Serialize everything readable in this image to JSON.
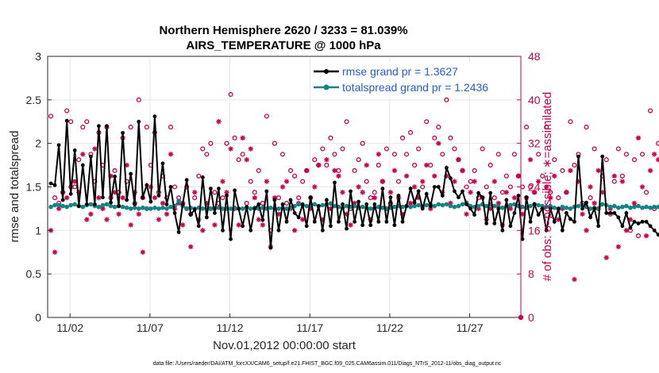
{
  "chart_data": {
    "type": "line",
    "title_line1": "Northern Hemisphere 2620 / 3233 = 81.039%",
    "title_line2": "AIRS_TEMPERATURE @ 1000 hPa",
    "xlabel": "Nov.01,2012 00:00:00 start",
    "ylabel_left": "rmse and totalspread",
    "ylabel_right": "# of obs: o=possible; ∗=assimilated",
    "footer": "data file: /Users/raeder/DAI/ATM_forcXX/CAM6_setup/f.e21.FHIST_BGC.f09_025.CAM6assim.011/Diags_NTrS_2012-11/obs_diag_output.nc",
    "xlim": [
      0.6,
      30.2
    ],
    "ylim_left": [
      0,
      3
    ],
    "ylim_right": [
      0,
      48
    ],
    "x_tick_values": [
      2,
      7,
      12,
      17,
      22,
      27
    ],
    "x_tick_labels": [
      "11/02",
      "11/07",
      "11/12",
      "11/17",
      "11/22",
      "11/27"
    ],
    "y_left_ticks": [
      0,
      0.5,
      1,
      1.5,
      2,
      2.5,
      3
    ],
    "y_left_tick_labels": [
      "0",
      "0.5",
      "1",
      "1.5",
      "2",
      "2.5",
      "3"
    ],
    "y_right_ticks": [
      0,
      8,
      16,
      24,
      32,
      40,
      48
    ],
    "y_right_tick_labels": [
      "0",
      "8",
      "16",
      "24",
      "32",
      "40",
      "48"
    ],
    "x_start": 0.8,
    "x_step": 0.25,
    "series": [
      {
        "name": "rmse",
        "legend": "rmse grand pr = 1.3627",
        "color": "#000000",
        "values": [
          1.54,
          1.52,
          1.98,
          1.35,
          2.26,
          1.42,
          1.92,
          1.28,
          1.75,
          1.3,
          1.85,
          1.3,
          2.2,
          1.38,
          2.2,
          1.32,
          1.62,
          1.28,
          2.12,
          1.35,
          1.65,
          1.3,
          2.25,
          1.38,
          1.52,
          1.33,
          2.31,
          1.4,
          1.77,
          1.3,
          1.5,
          1.2,
          0.98,
          1.3,
          1.58,
          1.18,
          1.24,
          1.05,
          1.61,
          1.15,
          1.48,
          1.2,
          1.48,
          1.0,
          1.4,
          0.9,
          1.46,
          1.25,
          1.05,
          1.27,
          1.0,
          1.25,
          1.3,
          1.12,
          1.45,
          0.8,
          1.35,
          1.0,
          1.3,
          1.1,
          1.35,
          1.2,
          1.15,
          1.3,
          1.05,
          1.38,
          1.1,
          1.28,
          1.0,
          1.35,
          1.05,
          1.55,
          1.1,
          1.3,
          1.02,
          1.45,
          1.1,
          1.33,
          1.06,
          1.3,
          1.06,
          1.3,
          1.1,
          1.48,
          1.1,
          1.38,
          1.06,
          1.4,
          1.1,
          1.28,
          1.48,
          1.32,
          1.45,
          1.25,
          1.42,
          1.28,
          1.5,
          1.5,
          1.4,
          1.72,
          1.6,
          1.45,
          1.38,
          1.45,
          1.3,
          1.25,
          1.18,
          1.43,
          1.38,
          1.08,
          1.43,
          1.08,
          1.25,
          1.0,
          1.35,
          1.05,
          1.2,
          1.4,
          0.9,
          1.38,
          1.1,
          1.3,
          1.18,
          1.25,
          1.0,
          1.25,
          1.1,
          1.25,
          1.0,
          1.2,
          1.13,
          1.1,
          1.85,
          1.25,
          1.32,
          1.15,
          1.25,
          1.05,
          1.85,
          1.2,
          1.2,
          1.2,
          1.15,
          1.05,
          1.2,
          1.03,
          1.1,
          1.08,
          1.1,
          1.1,
          1.05,
          1.0,
          0.95
        ]
      },
      {
        "name": "totalspread",
        "legend": "totalspread grand pr = 1.2436",
        "color": "#168383",
        "values": [
          1.27,
          1.29,
          1.29,
          1.28,
          1.27,
          1.29,
          1.3,
          1.28,
          1.27,
          1.29,
          1.3,
          1.28,
          1.27,
          1.29,
          1.3,
          1.28,
          1.27,
          1.28,
          1.27,
          1.26,
          1.25,
          1.26,
          1.25,
          1.26,
          1.25,
          1.25,
          1.26,
          1.25,
          1.26,
          1.25,
          1.27,
          1.28,
          1.34,
          1.28,
          1.25,
          1.26,
          1.25,
          1.26,
          1.25,
          1.26,
          1.25,
          1.25,
          1.26,
          1.25,
          1.25,
          1.25,
          1.26,
          1.25,
          1.25,
          1.26,
          1.25,
          1.26,
          1.25,
          1.26,
          1.25,
          1.26,
          1.25,
          1.25,
          1.26,
          1.25,
          1.26,
          1.28,
          1.3,
          1.29,
          1.28,
          1.29,
          1.3,
          1.28,
          1.29,
          1.3,
          1.31,
          1.28,
          1.27,
          1.26,
          1.28,
          1.27,
          1.28,
          1.26,
          1.27,
          1.26,
          1.25,
          1.26,
          1.27,
          1.26,
          1.25,
          1.26,
          1.27,
          1.28,
          1.27,
          1.28,
          1.27,
          1.28,
          1.29,
          1.27,
          1.29,
          1.3,
          1.28,
          1.3,
          1.29,
          1.3,
          1.28,
          1.27,
          1.28,
          1.3,
          1.32,
          1.28,
          1.27,
          1.28,
          1.3,
          1.28,
          1.3,
          1.28,
          1.27,
          1.26,
          1.28,
          1.29,
          1.3,
          1.28,
          1.27,
          1.26,
          1.28,
          1.3,
          1.29,
          1.28,
          1.27,
          1.28,
          1.26,
          1.25,
          1.27,
          1.26,
          1.25,
          1.27,
          1.28,
          1.29,
          1.27,
          1.25,
          1.26,
          1.25,
          1.3,
          1.29,
          1.27,
          1.28,
          1.26,
          1.27,
          1.28,
          1.26,
          1.27,
          1.28,
          1.26,
          1.27,
          1.26,
          1.27,
          1.27
        ]
      },
      {
        "name": "obs possible",
        "marker": "o",
        "color": "#c8004e",
        "values": [
          37,
          22,
          21,
          23,
          38,
          36,
          24,
          29,
          35,
          36,
          30,
          25,
          34,
          28,
          35,
          22,
          27,
          23,
          33,
          25,
          35,
          21,
          40,
          22,
          35,
          28,
          34,
          23,
          26,
          22,
          35,
          24,
          22,
          21,
          24,
          19,
          22,
          26,
          31,
          30,
          32,
          23,
          21,
          22,
          32,
          41,
          33,
          29,
          30,
          21,
          25,
          23,
          27,
          21,
          37,
          16,
          32,
          22,
          30,
          21,
          27,
          26,
          22,
          25,
          27,
          22,
          29,
          28,
          31,
          28,
          33,
          30,
          27,
          31,
          36,
          20,
          27,
          29,
          32,
          25,
          22,
          23,
          28,
          25,
          31,
          21,
          30,
          25,
          33,
          30,
          34,
          28,
          31,
          24,
          36,
          28,
          33,
          35,
          30,
          40,
          33,
          31,
          29,
          27,
          24,
          25,
          27,
          22,
          31,
          24,
          28,
          22,
          30,
          23,
          26,
          24,
          30,
          26,
          24,
          35,
          24,
          23,
          30,
          26,
          35,
          23,
          29,
          22,
          27,
          23,
          36,
          28,
          30,
          21,
          35,
          22,
          31,
          20,
          26,
          29,
          19,
          25,
          31,
          26,
          30,
          16,
          29,
          15,
          30,
          23,
          38,
          20,
          32
        ]
      },
      {
        "name": "obs assimilated",
        "marker": "*",
        "color": "#c8004e",
        "values": [
          16,
          12,
          20,
          23,
          22,
          24,
          25,
          23,
          30,
          18,
          19,
          31,
          22,
          20,
          18,
          26,
          23,
          19,
          22,
          28,
          17,
          23,
          19,
          12,
          20,
          24,
          22,
          18,
          21,
          19,
          30,
          20,
          21,
          17,
          20,
          13,
          23,
          18,
          16,
          21,
          20,
          17,
          36,
          25,
          23,
          31,
          20,
          17,
          33,
          29,
          31,
          22,
          18,
          17,
          25,
          13,
          22,
          19,
          24,
          25,
          20,
          16,
          21,
          18,
          27,
          20,
          24,
          28,
          18,
          29,
          20,
          27,
          26,
          23,
          19,
          17,
          21,
          24,
          23,
          28,
          18,
          22,
          30,
          25,
          20,
          23,
          27,
          22,
          19,
          26,
          21,
          24,
          22,
          25,
          28,
          20,
          26,
          32,
          23,
          26,
          21,
          25,
          29,
          27,
          19,
          23,
          25,
          20,
          22,
          18,
          20,
          25,
          21,
          17,
          23,
          20,
          22,
          26,
          19,
          22,
          29,
          23,
          25,
          20,
          24,
          22,
          26,
          18,
          20,
          23,
          27,
          7,
          25,
          19,
          16,
          24,
          21,
          27,
          23,
          11,
          20,
          26,
          13,
          25,
          16,
          18,
          21,
          33,
          24,
          15,
          27,
          30,
          29
        ]
      }
    ]
  }
}
